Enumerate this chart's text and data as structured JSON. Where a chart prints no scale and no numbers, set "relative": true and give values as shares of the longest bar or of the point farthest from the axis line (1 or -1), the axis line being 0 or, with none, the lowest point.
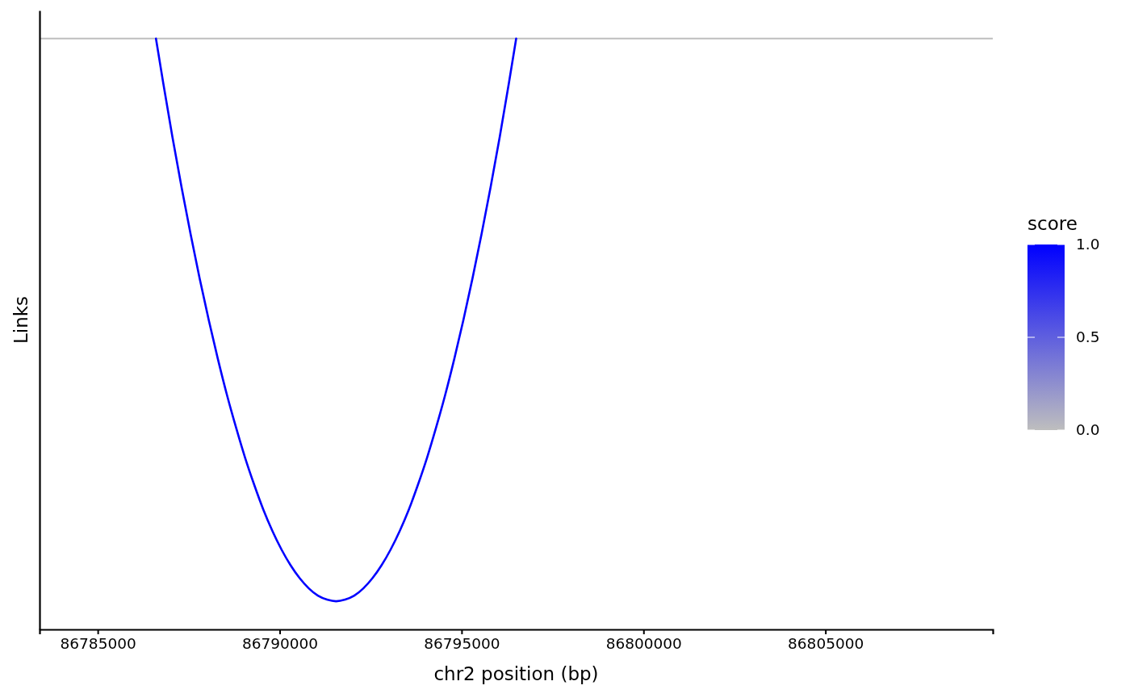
{
  "chart_data": {
    "type": "line",
    "relative": true,
    "xlabel": "chr2 position (bp)",
    "ylabel": "Links",
    "xlim": [
      86783400,
      86809600
    ],
    "xticks": [
      86785000,
      86790000,
      86795000,
      86800000,
      86805000
    ],
    "tick_labels": "x",
    "grid": false,
    "clabel": "score",
    "clim": [
      0,
      1
    ],
    "cticks": [
      {
        "value": 0,
        "label": "0.0"
      },
      {
        "value": 0.5,
        "label": "0.5"
      },
      {
        "value": 1,
        "label": "1.0"
      }
    ],
    "ref_lines": [
      {
        "axis": "y",
        "value": 0,
        "color": "#bebebe"
      }
    ],
    "series": [
      {
        "color": "#0000ff",
        "x": [
          86786600,
          86786800,
          86787050,
          86787300,
          86787550,
          86787800,
          86788050,
          86788300,
          86788550,
          86788800,
          86789050,
          86789300,
          86789550,
          86789800,
          86790050,
          86790300,
          86790550,
          86790800,
          86791050,
          86791300,
          86791550,
          86791800,
          86792050,
          86792300,
          86792550,
          86792800,
          86793050,
          86793300,
          86793550,
          86793800,
          86794050,
          86794300,
          86794550,
          86794800,
          86795050,
          86795300,
          86795550,
          86795800,
          86796050,
          86796300,
          86796500
        ],
        "values": [
          0,
          -0.079,
          -0.174,
          -0.263,
          -0.347,
          -0.426,
          -0.5,
          -0.569,
          -0.633,
          -0.691,
          -0.745,
          -0.793,
          -0.837,
          -0.875,
          -0.908,
          -0.936,
          -0.959,
          -0.977,
          -0.99,
          -0.997,
          -1,
          -0.997,
          -0.99,
          -0.977,
          -0.959,
          -0.936,
          -0.908,
          -0.875,
          -0.837,
          -0.793,
          -0.745,
          -0.691,
          -0.633,
          -0.569,
          -0.5,
          -0.426,
          -0.347,
          -0.263,
          -0.174,
          -0.079,
          0
        ]
      }
    ]
  }
}
